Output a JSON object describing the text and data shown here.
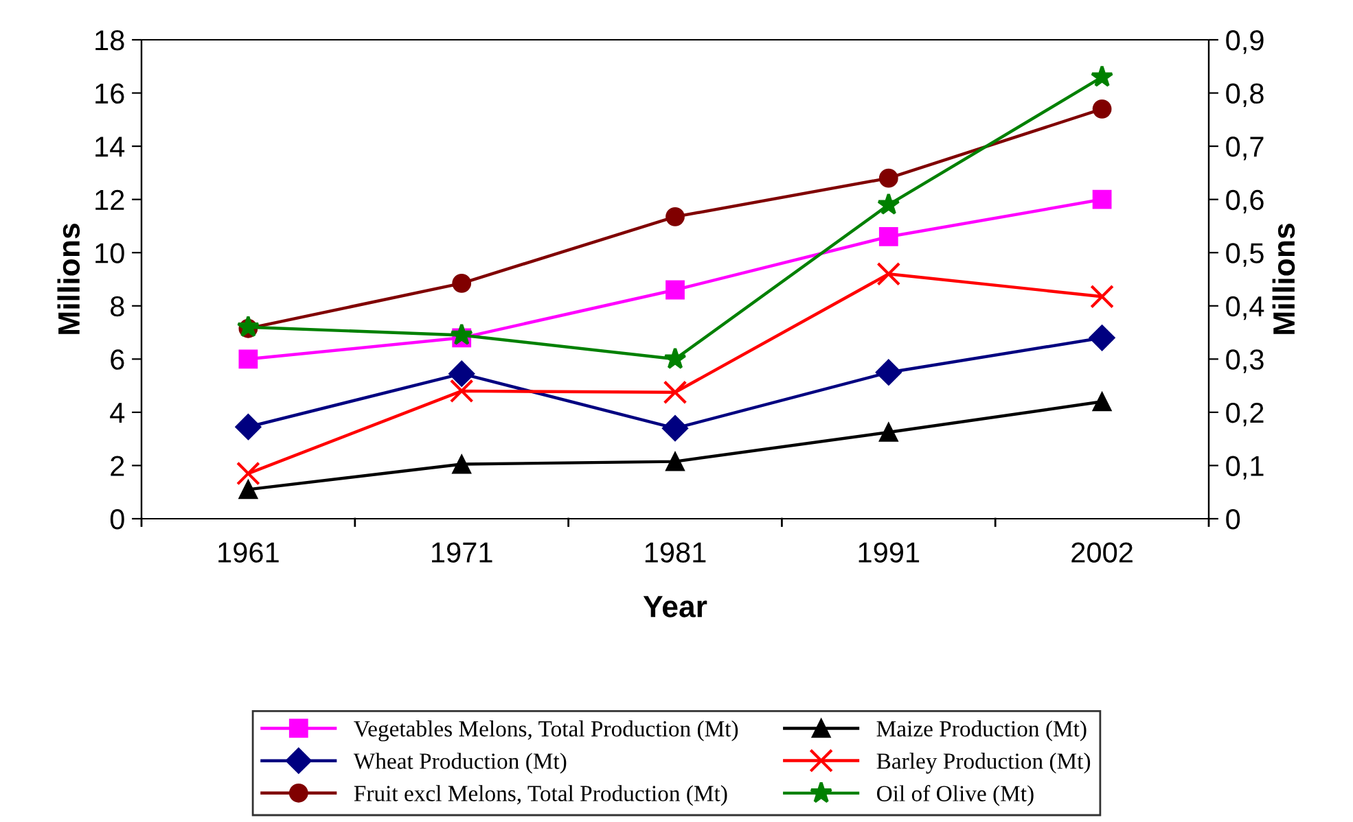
{
  "chart_data": {
    "type": "line",
    "xlabel": "Year",
    "ylabel": "Millions",
    "y2label": "Millions",
    "categories": [
      "1961",
      "1971",
      "1981",
      "1991",
      "2002"
    ],
    "ylim": [
      0,
      18
    ],
    "yticks": [
      0,
      2,
      4,
      6,
      8,
      10,
      12,
      14,
      16,
      18
    ],
    "y2lim": [
      0,
      0.9
    ],
    "y2ticks": [
      {
        "value": 0,
        "label": "0"
      },
      {
        "value": 0.1,
        "label": "0,1"
      },
      {
        "value": 0.2,
        "label": "0,2"
      },
      {
        "value": 0.3,
        "label": "0,3"
      },
      {
        "value": 0.4,
        "label": "0,4"
      },
      {
        "value": 0.5,
        "label": "0,5"
      },
      {
        "value": 0.6,
        "label": "0,6"
      },
      {
        "value": 0.7,
        "label": "0,7"
      },
      {
        "value": 0.8,
        "label": "0,8"
      },
      {
        "value": 0.9,
        "label": "0,9"
      }
    ],
    "grid": false,
    "legend": "bottom",
    "series": [
      {
        "name": "Vegetables Melons, Total Production (Mt)",
        "color": "#ff00ff",
        "marker": "square",
        "values": [
          6.0,
          6.8,
          8.6,
          10.6,
          12.0
        ]
      },
      {
        "name": "Wheat Production (Mt)",
        "color": "#000080",
        "marker": "diamond",
        "values": [
          3.45,
          5.45,
          3.4,
          5.5,
          6.8
        ]
      },
      {
        "name": "Fruit excl Melons, Total Production (Mt)",
        "color": "#800000",
        "marker": "circle",
        "values": [
          7.15,
          8.85,
          11.35,
          12.8,
          15.4
        ]
      },
      {
        "name": "Maize Production (Mt)",
        "color": "#000000",
        "marker": "triangle",
        "values": [
          1.1,
          2.05,
          2.15,
          3.25,
          4.4
        ]
      },
      {
        "name": "Barley Production (Mt)",
        "color": "#ff0000",
        "marker": "cross",
        "values": [
          1.7,
          4.8,
          4.75,
          9.2,
          8.35
        ]
      },
      {
        "name": "Oil of Olive (Mt)",
        "color": "#008000",
        "marker": "star",
        "axis": "y2",
        "values": [
          0.36,
          0.345,
          0.3,
          0.59,
          0.83
        ]
      }
    ]
  }
}
